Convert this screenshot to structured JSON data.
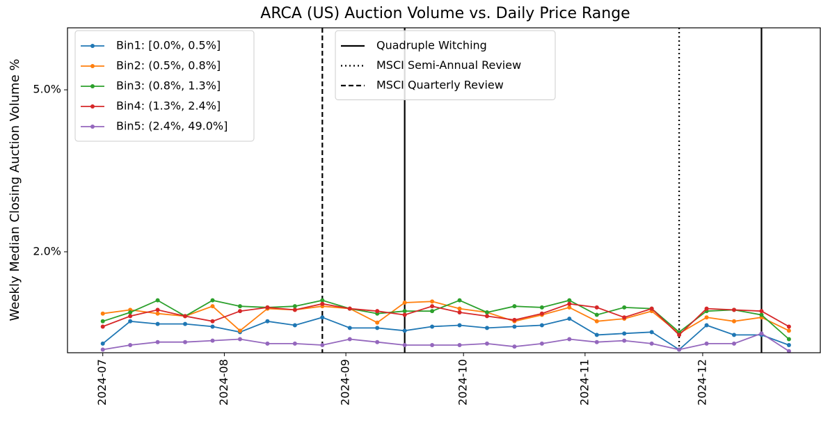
{
  "chart_data": {
    "type": "line",
    "title": "ARCA (US) Auction Volume vs. Daily Price Range",
    "y_label": "Weekly Median Closing Auction Volume %",
    "log_y": true,
    "x": [
      "2024-07-01",
      "2024-07-08",
      "2024-07-15",
      "2024-07-22",
      "2024-07-29",
      "2024-08-05",
      "2024-08-12",
      "2024-08-19",
      "2024-08-26",
      "2024-09-02",
      "2024-09-09",
      "2024-09-16",
      "2024-09-23",
      "2024-09-30",
      "2024-10-07",
      "2024-10-14",
      "2024-10-21",
      "2024-10-28",
      "2024-11-04",
      "2024-11-11",
      "2024-11-18",
      "2024-11-25",
      "2024-12-02",
      "2024-12-09",
      "2024-12-16",
      "2024-12-23"
    ],
    "series": [
      {
        "name": "Bin1: [0.0%, 0.5%]",
        "color": "#1f77b4",
        "values": [
          1.19,
          1.35,
          1.33,
          1.33,
          1.31,
          1.27,
          1.35,
          1.32,
          1.38,
          1.3,
          1.3,
          1.28,
          1.31,
          1.32,
          1.3,
          1.31,
          1.32,
          1.37,
          1.25,
          1.26,
          1.27,
          1.15,
          1.32,
          1.25,
          1.25,
          1.18
        ]
      },
      {
        "name": "Bin2: (0.5%, 0.8%]",
        "color": "#ff7f0e",
        "values": [
          1.41,
          1.44,
          1.41,
          1.39,
          1.47,
          1.28,
          1.45,
          1.44,
          1.47,
          1.45,
          1.34,
          1.5,
          1.51,
          1.45,
          1.42,
          1.35,
          1.4,
          1.46,
          1.35,
          1.37,
          1.43,
          1.26,
          1.38,
          1.35,
          1.38,
          1.28
        ]
      },
      {
        "name": "Bin3: (0.8%, 1.3%]",
        "color": "#2ca02c",
        "values": [
          1.35,
          1.42,
          1.52,
          1.39,
          1.52,
          1.47,
          1.46,
          1.47,
          1.52,
          1.45,
          1.41,
          1.43,
          1.43,
          1.52,
          1.42,
          1.47,
          1.46,
          1.52,
          1.4,
          1.46,
          1.45,
          1.27,
          1.43,
          1.44,
          1.4,
          1.22
        ]
      },
      {
        "name": "Bin4: (1.3%, 2.4%]",
        "color": "#d62728",
        "values": [
          1.31,
          1.39,
          1.44,
          1.39,
          1.35,
          1.43,
          1.46,
          1.44,
          1.49,
          1.45,
          1.43,
          1.4,
          1.47,
          1.42,
          1.39,
          1.36,
          1.41,
          1.49,
          1.46,
          1.38,
          1.45,
          1.25,
          1.45,
          1.44,
          1.43,
          1.31
        ]
      },
      {
        "name": "Bin5: (2.4%, 49.0%]",
        "color": "#9467bd",
        "values": [
          1.15,
          1.18,
          1.2,
          1.2,
          1.21,
          1.22,
          1.19,
          1.19,
          1.18,
          1.22,
          1.2,
          1.18,
          1.18,
          1.18,
          1.19,
          1.17,
          1.19,
          1.22,
          1.2,
          1.21,
          1.19,
          1.15,
          1.19,
          1.19,
          1.26,
          1.14
        ]
      }
    ],
    "vlines": [
      {
        "name": "Quadruple Witching",
        "style": "solid",
        "x": [
          "2024-09-16",
          "2024-12-16"
        ]
      },
      {
        "name": "MSCI Semi-Annual Review",
        "style": "dotted",
        "x": [
          "2024-11-25"
        ]
      },
      {
        "name": "MSCI Quarterly Review",
        "style": "dashed",
        "x": [
          "2024-08-26"
        ]
      }
    ],
    "xlim": [
      "2024-06-22",
      "2024-12-31"
    ],
    "xticks": [
      {
        "value": "2024-07-01",
        "label": "2024-07"
      },
      {
        "value": "2024-08-01",
        "label": "2024-08"
      },
      {
        "value": "2024-09-01",
        "label": "2024-09"
      },
      {
        "value": "2024-10-01",
        "label": "2024-10"
      },
      {
        "value": "2024-11-01",
        "label": "2024-11"
      },
      {
        "value": "2024-12-01",
        "label": "2024-12"
      }
    ],
    "ylim": [
      1.13,
      7.1
    ],
    "yticks": [
      {
        "value": 2,
        "label": "2.0%"
      },
      {
        "value": 5,
        "label": "5.0%"
      }
    ],
    "legend": "upper left",
    "vline_legend": "upper center"
  }
}
